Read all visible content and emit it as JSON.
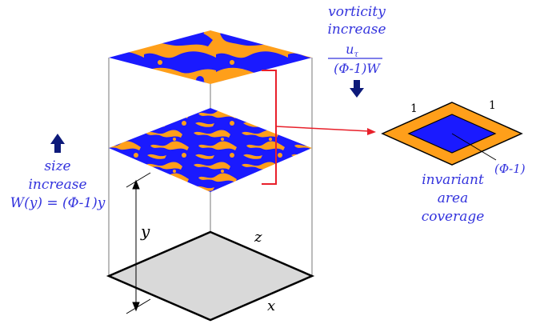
{
  "colors": {
    "blue": "#1a1aff",
    "orange": "#ff9f1a",
    "accent_text": "#3333dd",
    "red": "#e8202a",
    "floor": "#d9d9d9"
  },
  "labels": {
    "vorticity_line1": "vorticity",
    "vorticity_line2": "increase",
    "frac_num": "u",
    "frac_sub": "τ",
    "frac_den": "(Φ-1)W",
    "size_line1": "size",
    "size_line2": "increase",
    "size_formula": "W(y) = (Φ-1)y",
    "axis_y": "y",
    "axis_z": "z",
    "axis_x": "x",
    "side_1_left": "1",
    "side_1_right": "1",
    "phi_label": "(Φ-1)",
    "invariant_line1": "invariant",
    "invariant_line2": "area",
    "invariant_line3": "coverage"
  },
  "icons": {
    "up_arrow": "up-arrow-icon",
    "down_arrow": "down-arrow-icon"
  }
}
